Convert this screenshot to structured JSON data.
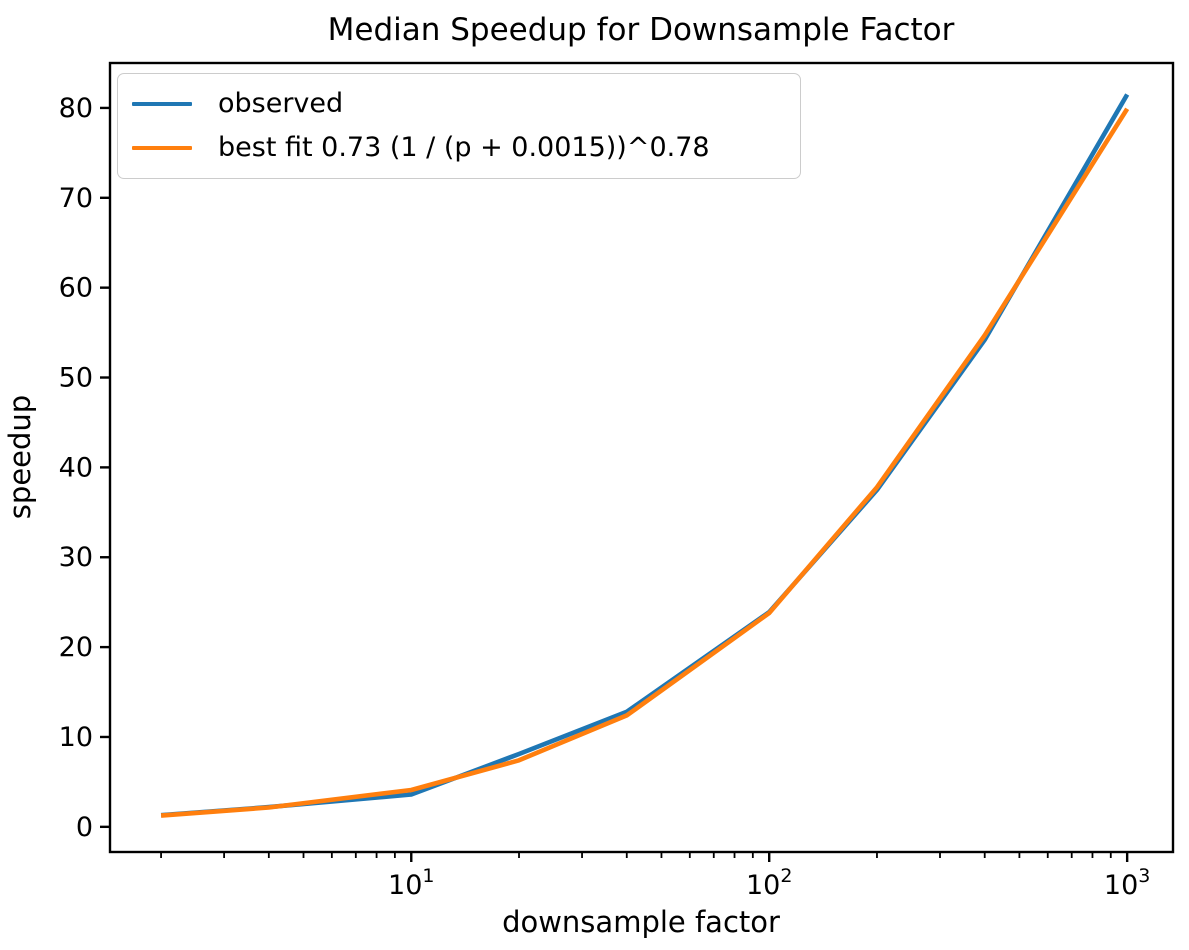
{
  "figure": {
    "background": "#ffffff",
    "text_color": "#000000",
    "axis_color": "#000000"
  },
  "chart_data": {
    "type": "line",
    "title": "Median Speedup for Downsample Factor",
    "xlabel": "downsample factor",
    "ylabel": "speedup",
    "x_scale": "log",
    "xlim": [
      1.44,
      1343
    ],
    "ylim": [
      -2.8,
      85.0
    ],
    "x_major_ticks": [
      10,
      100,
      1000
    ],
    "y_ticks": [
      0,
      10,
      20,
      30,
      40,
      50,
      60,
      70,
      80
    ],
    "x": [
      2,
      4,
      10,
      20,
      40,
      100,
      200,
      400,
      1000
    ],
    "series": [
      {
        "name": "observed",
        "color": "#1f77b4",
        "values": [
          1.3,
          2.2,
          3.6,
          8.1,
          12.8,
          23.9,
          37.5,
          54.2,
          81.5
        ]
      },
      {
        "name": "best fit 0.73 (1 / (p + 0.0015))^0.78",
        "color": "#ff7f0e",
        "values": [
          1.25,
          2.15,
          4.1,
          7.4,
          12.4,
          23.8,
          37.8,
          54.7,
          79.9
        ]
      }
    ],
    "legend": {
      "position": "upper left",
      "entries": [
        "observed",
        "best fit 0.73 (1 / (p + 0.0015))^0.78"
      ]
    },
    "grid": false
  }
}
